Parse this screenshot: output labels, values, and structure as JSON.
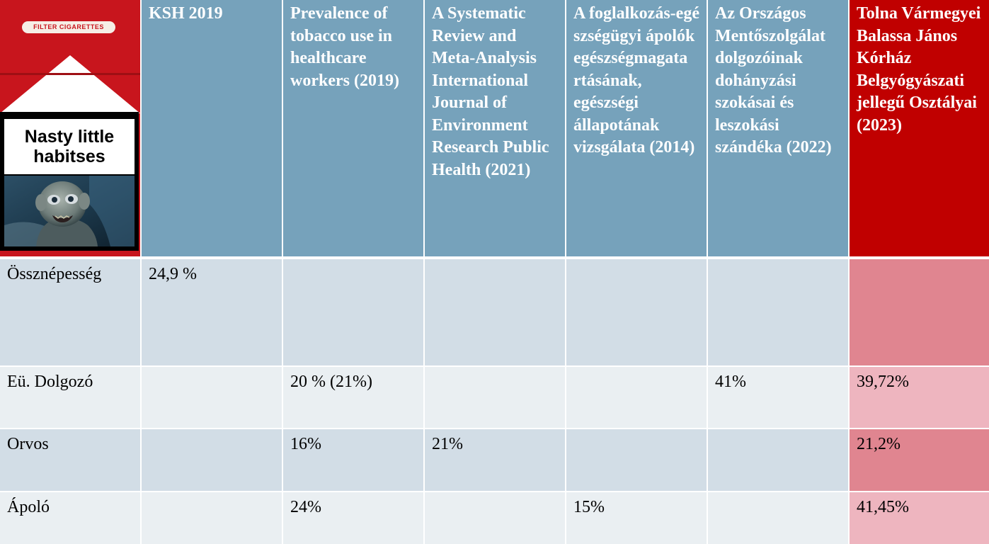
{
  "image_panel": {
    "badge": "FILTER CIGARETTES",
    "warning_text": "Nasty little habitses"
  },
  "header": {
    "col1": "KSH 2019",
    "col2": "Prevalence of tobacco use in healthcare workers (2019)",
    "col3": "A Systematic Review and Meta-Analysis International Journal of Environment Research Public Health (2021)",
    "col4": "A foglalkozás-egé szségügyi ápolók egészségmagata rtásának, egészségi állapotának vizsgálata (2014)",
    "col5": "Az Országos Mentőszolgálat dolgozóinak dohányzási szokásai és leszokási szándéka (2022)",
    "col6": "Tolna Vármegyei Balassa János Kórház Belgyógyászati jellegű Osztályai (2023)"
  },
  "rows": [
    {
      "label": "Össznépesség",
      "c1": "24,9 %",
      "c2": "",
      "c3": "",
      "c4": "",
      "c5": "",
      "c6": ""
    },
    {
      "label": "Eü. Dolgozó",
      "c1": "",
      "c2": "20 % (21%)",
      "c3": "",
      "c4": "",
      "c5": "41%",
      "c6": "39,72%"
    },
    {
      "label": "Orvos",
      "c1": "",
      "c2": "16%",
      "c3": "21%",
      "c4": "",
      "c5": "",
      "c6": "21,2%"
    },
    {
      "label": "Ápoló",
      "c1": "",
      "c2": "24%",
      "c3": "",
      "c4": "15%",
      "c5": "",
      "c6": "41,45%"
    }
  ],
  "colors": {
    "header_blue": "#76a2bb",
    "header_red": "#c00000",
    "row_blue_dark": "#d2dde6",
    "row_blue_light": "#eaeff2",
    "row_red_dark": "#e08590",
    "row_red_light": "#eeb5bf"
  }
}
